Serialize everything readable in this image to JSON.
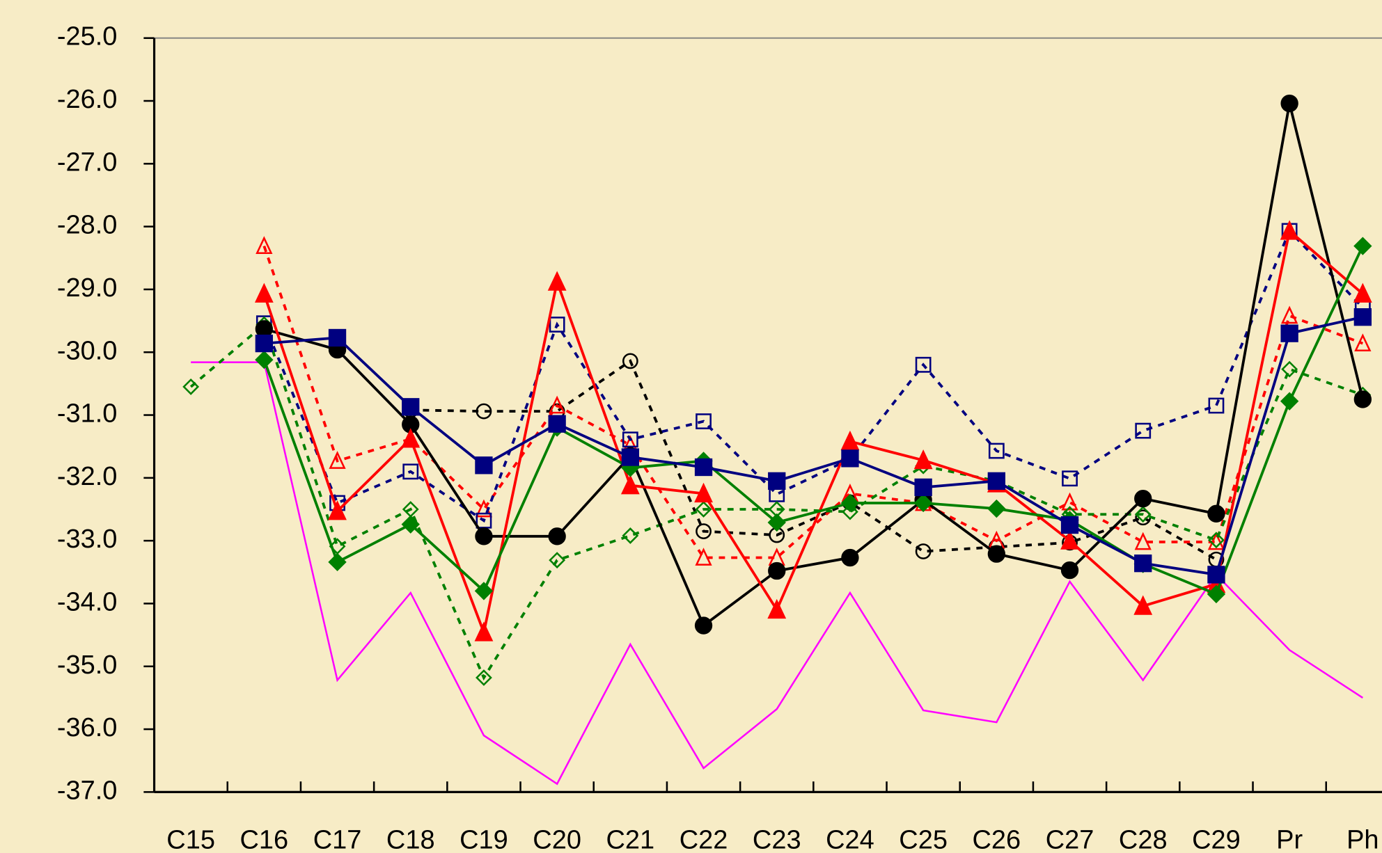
{
  "chart_data": {
    "type": "line",
    "categories": [
      "C15",
      "C16",
      "C17",
      "C18",
      "C19",
      "C20",
      "C21",
      "C22",
      "C23",
      "C24",
      "C25",
      "C26",
      "C27",
      "C28",
      "C29",
      "Pr",
      "Ph"
    ],
    "ylim": [
      -37,
      -25
    ],
    "yticks": [
      {
        "value": -37,
        "label": "-37.0"
      },
      {
        "value": -36,
        "label": "-36.0"
      },
      {
        "value": -35,
        "label": "-35.0"
      },
      {
        "value": -34,
        "label": "-34.0"
      },
      {
        "value": -33,
        "label": "-33.0"
      },
      {
        "value": -32,
        "label": "-32.0"
      },
      {
        "value": -31,
        "label": "-31.0"
      },
      {
        "value": -30,
        "label": "-30.0"
      },
      {
        "value": -29,
        "label": "-29.0"
      },
      {
        "value": -28,
        "label": "-28.0"
      },
      {
        "value": -27,
        "label": "-27.0"
      },
      {
        "value": -26,
        "label": "-26.0"
      },
      {
        "value": -25,
        "label": "-25.0"
      }
    ],
    "series": [
      {
        "color": "#ff00ff",
        "marker": "none",
        "dashed": false,
        "values": [
          -30.16,
          -30.16,
          -35.22,
          -33.83,
          -36.1,
          -36.87,
          -34.65,
          -36.62,
          -35.68,
          -33.83,
          -35.7,
          -35.89,
          -33.65,
          -35.22,
          -33.54,
          -34.74,
          -35.5
        ]
      },
      {
        "color": "#000000",
        "marker": "circle",
        "filled": false,
        "dashed": true,
        "values": [
          null,
          null,
          null,
          -30.92,
          -30.94,
          -30.94,
          -30.14,
          -32.85,
          -32.91,
          -32.39,
          -33.17,
          -33.1,
          -33.03,
          -32.63,
          -33.3,
          null,
          null
        ]
      },
      {
        "color": "#ff0000",
        "marker": "triangle",
        "filled": false,
        "dashed": true,
        "values": [
          null,
          -28.31,
          -31.73,
          -31.38,
          -32.5,
          -30.85,
          -31.48,
          -33.27,
          -33.27,
          -32.25,
          -32.4,
          -33.0,
          -32.39,
          -33.02,
          -33.02,
          -29.42,
          -29.86
        ]
      },
      {
        "color": "#000080",
        "marker": "square",
        "filled": false,
        "dashed": true,
        "values": [
          null,
          -29.54,
          -32.4,
          -31.9,
          -32.68,
          -29.56,
          -31.39,
          -31.1,
          -32.26,
          -31.7,
          -30.2,
          -31.57,
          -32.01,
          -31.25,
          -30.85,
          -28.07,
          -29.29
        ]
      },
      {
        "color": "#008000",
        "marker": "diamond",
        "filled": false,
        "dashed": true,
        "values": [
          -30.55,
          -29.56,
          -33.09,
          -32.5,
          -35.18,
          -33.31,
          -32.92,
          -32.5,
          -32.5,
          -32.54,
          -31.81,
          -32.05,
          -32.58,
          -32.58,
          -32.99,
          -30.27,
          -30.68
        ]
      },
      {
        "color": "#000000",
        "marker": "circle",
        "filled": true,
        "dashed": false,
        "values": [
          null,
          -29.63,
          -29.96,
          -31.15,
          -32.93,
          -32.93,
          -31.65,
          -34.35,
          -33.48,
          -33.27,
          -32.35,
          -33.21,
          -33.47,
          -32.33,
          -32.57,
          -26.04,
          -30.75
        ]
      },
      {
        "color": "#ff0000",
        "marker": "triangle",
        "filled": true,
        "dashed": false,
        "values": [
          null,
          -29.07,
          -32.53,
          -31.38,
          -34.46,
          -28.88,
          -32.12,
          -32.25,
          -34.1,
          -31.42,
          -31.72,
          -32.09,
          -33.0,
          -34.04,
          -33.69,
          -28.07,
          -29.07
        ]
      },
      {
        "color": "#008000",
        "marker": "diamond",
        "filled": true,
        "dashed": false,
        "values": [
          null,
          -30.12,
          -33.34,
          -32.74,
          -33.8,
          -31.2,
          -31.84,
          -31.73,
          -32.71,
          -32.4,
          -32.4,
          -32.49,
          -32.67,
          -33.37,
          -33.85,
          -30.78,
          -28.31
        ]
      },
      {
        "color": "#000080",
        "marker": "square",
        "filled": true,
        "dashed": false,
        "values": [
          null,
          -29.86,
          -29.77,
          -30.87,
          -31.8,
          -31.14,
          -31.67,
          -31.83,
          -32.05,
          -31.69,
          -32.15,
          -32.05,
          -32.75,
          -33.36,
          -33.54,
          -29.7,
          -29.44
        ]
      }
    ]
  }
}
